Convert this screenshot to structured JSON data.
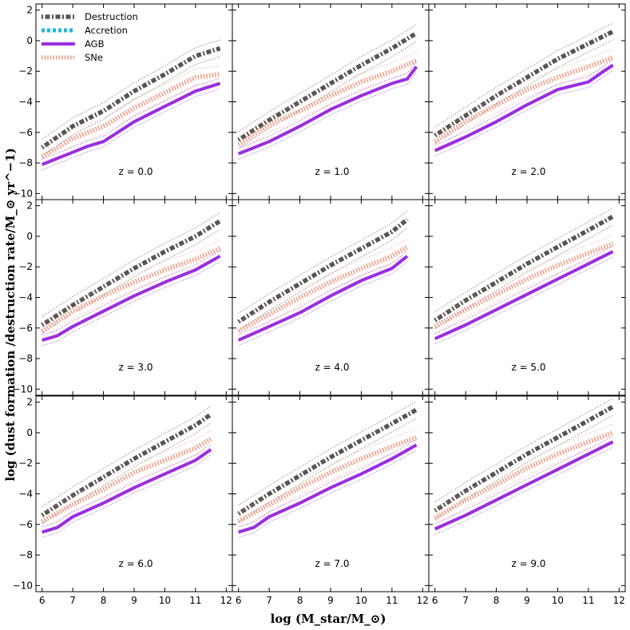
{
  "chart_data": {
    "type": "line",
    "xlabel": "log (M_star/M_⊙)",
    "ylabel": "log (dust formation /destruction rate/M_⊙ yr^−1)",
    "xlim": [
      5.8,
      12.2
    ],
    "ylim": [
      -10.4,
      2.4
    ],
    "xticks": [
      6,
      7,
      8,
      9,
      10,
      11,
      12
    ],
    "yticks": [
      2,
      0,
      -2,
      -4,
      -6,
      -8,
      -10
    ],
    "legend": {
      "placement": "top-left of first panel",
      "entries": [
        {
          "name": "Destruction",
          "color": "#555555",
          "style": "dash-dot"
        },
        {
          "name": "Accretion",
          "color": "#1fb4e6",
          "style": "dotted"
        },
        {
          "name": "AGB",
          "color": "#9a2ee0",
          "style": "solid"
        },
        {
          "name": "SNe",
          "color": "#f0a08a",
          "style": "dotted"
        }
      ]
    },
    "panels": [
      {
        "label": "z = 0.0",
        "destruction": {
          "x": [
            6.0,
            7.0,
            8.0,
            9.0,
            10.0,
            11.0,
            11.8
          ],
          "y": [
            -7.0,
            -5.6,
            -4.6,
            -3.3,
            -2.2,
            -1.0,
            -0.5
          ]
        },
        "sne": {
          "x": [
            6.0,
            7.0,
            8.0,
            9.0,
            10.0,
            11.0,
            11.8
          ],
          "y": [
            -7.6,
            -6.4,
            -5.6,
            -4.4,
            -3.4,
            -2.4,
            -2.2
          ]
        },
        "agb": {
          "x": [
            6.0,
            7.0,
            7.5,
            8.0,
            9.0,
            10.0,
            10.5,
            11.0,
            11.8
          ],
          "y": [
            -8.1,
            -7.3,
            -6.9,
            -6.6,
            -5.3,
            -4.3,
            -3.8,
            -3.3,
            -2.8
          ]
        }
      },
      {
        "label": "z = 1.0",
        "destruction": {
          "x": [
            6.0,
            7.0,
            8.0,
            9.0,
            10.0,
            11.0,
            11.8
          ],
          "y": [
            -6.5,
            -5.2,
            -4.0,
            -2.8,
            -1.6,
            -0.5,
            0.5
          ]
        },
        "sne": {
          "x": [
            6.0,
            7.0,
            8.0,
            9.0,
            10.0,
            11.0,
            11.8
          ],
          "y": [
            -6.8,
            -5.5,
            -4.6,
            -3.6,
            -2.7,
            -2.0,
            -1.3
          ]
        },
        "agb": {
          "x": [
            6.0,
            7.0,
            8.0,
            9.0,
            10.0,
            11.0,
            11.5,
            11.8
          ],
          "y": [
            -7.4,
            -6.6,
            -5.6,
            -4.5,
            -3.6,
            -2.8,
            -2.5,
            -1.7
          ]
        }
      },
      {
        "label": "z = 2.0",
        "destruction": {
          "x": [
            6.0,
            7.0,
            8.0,
            9.0,
            10.0,
            11.0,
            11.8
          ],
          "y": [
            -6.2,
            -4.9,
            -3.6,
            -2.4,
            -1.2,
            -0.2,
            0.6
          ]
        },
        "sne": {
          "x": [
            6.0,
            7.0,
            8.0,
            9.0,
            10.0,
            11.0,
            11.8
          ],
          "y": [
            -6.6,
            -5.3,
            -4.2,
            -3.2,
            -2.4,
            -1.7,
            -1.1
          ]
        },
        "agb": {
          "x": [
            6.0,
            7.0,
            8.0,
            9.0,
            10.0,
            11.0,
            11.5,
            11.8
          ],
          "y": [
            -7.2,
            -6.3,
            -5.3,
            -4.2,
            -3.2,
            -2.7,
            -2.0,
            -1.6
          ]
        }
      },
      {
        "label": "z = 3.0",
        "destruction": {
          "x": [
            6.0,
            7.0,
            8.0,
            9.0,
            10.0,
            11.0,
            11.8
          ],
          "y": [
            -5.8,
            -4.5,
            -3.3,
            -2.1,
            -1.0,
            0.0,
            1.0
          ]
        },
        "sne": {
          "x": [
            6.0,
            7.0,
            8.0,
            9.0,
            10.0,
            11.0,
            11.8
          ],
          "y": [
            -6.2,
            -4.9,
            -3.9,
            -3.0,
            -2.2,
            -1.5,
            -0.8
          ]
        },
        "agb": {
          "x": [
            6.0,
            6.5,
            7.0,
            8.0,
            9.0,
            10.0,
            11.0,
            11.8
          ],
          "y": [
            -6.8,
            -6.5,
            -5.9,
            -4.9,
            -3.9,
            -3.0,
            -2.2,
            -1.3
          ]
        }
      },
      {
        "label": "z = 4.0",
        "destruction": {
          "x": [
            6.0,
            7.0,
            8.0,
            9.0,
            10.0,
            11.0,
            11.5
          ],
          "y": [
            -5.6,
            -4.3,
            -3.1,
            -1.9,
            -0.8,
            0.3,
            1.1
          ]
        },
        "sne": {
          "x": [
            6.0,
            7.0,
            8.0,
            9.0,
            10.0,
            11.0,
            11.5
          ],
          "y": [
            -6.2,
            -5.1,
            -4.0,
            -3.0,
            -2.1,
            -1.3,
            -0.7
          ]
        },
        "agb": {
          "x": [
            6.0,
            7.0,
            8.0,
            9.0,
            10.0,
            11.0,
            11.5
          ],
          "y": [
            -6.8,
            -5.9,
            -5.0,
            -3.9,
            -2.9,
            -2.1,
            -1.3
          ]
        }
      },
      {
        "label": "z = 5.0",
        "destruction": {
          "x": [
            6.0,
            7.0,
            8.0,
            9.0,
            10.0,
            11.0,
            11.8
          ],
          "y": [
            -5.5,
            -4.2,
            -3.0,
            -1.8,
            -0.7,
            0.4,
            1.3
          ]
        },
        "sne": {
          "x": [
            6.0,
            7.0,
            8.0,
            9.0,
            10.0,
            11.0,
            11.8
          ],
          "y": [
            -5.9,
            -4.8,
            -3.8,
            -2.8,
            -1.9,
            -1.1,
            -0.5
          ]
        },
        "agb": {
          "x": [
            6.0,
            7.0,
            8.0,
            9.0,
            10.0,
            11.0,
            11.8
          ],
          "y": [
            -6.7,
            -5.8,
            -4.8,
            -3.8,
            -2.8,
            -1.8,
            -1.0
          ]
        }
      },
      {
        "label": "z = 6.0",
        "destruction": {
          "x": [
            6.0,
            7.0,
            8.0,
            9.0,
            10.0,
            11.0,
            11.5
          ],
          "y": [
            -5.4,
            -4.1,
            -2.9,
            -1.7,
            -0.6,
            0.5,
            1.2
          ]
        },
        "sne": {
          "x": [
            6.0,
            7.0,
            8.0,
            9.0,
            10.0,
            11.0,
            11.5
          ],
          "y": [
            -5.8,
            -4.7,
            -3.7,
            -2.6,
            -1.8,
            -1.0,
            -0.4
          ]
        },
        "agb": {
          "x": [
            6.0,
            6.5,
            7.0,
            8.0,
            9.0,
            10.0,
            11.0,
            11.5
          ],
          "y": [
            -6.5,
            -6.2,
            -5.5,
            -4.6,
            -3.6,
            -2.7,
            -1.8,
            -1.1
          ]
        }
      },
      {
        "label": "z = 7.0",
        "destruction": {
          "x": [
            6.0,
            7.0,
            8.0,
            9.0,
            10.0,
            11.0,
            11.8
          ],
          "y": [
            -5.3,
            -4.0,
            -2.8,
            -1.6,
            -0.5,
            0.6,
            1.5
          ]
        },
        "sne": {
          "x": [
            6.0,
            7.0,
            8.0,
            9.0,
            10.0,
            11.0,
            11.8
          ],
          "y": [
            -5.8,
            -4.7,
            -3.6,
            -2.6,
            -1.7,
            -0.9,
            -0.3
          ]
        },
        "agb": {
          "x": [
            6.0,
            6.5,
            7.0,
            8.0,
            9.0,
            10.0,
            11.0,
            11.8
          ],
          "y": [
            -6.5,
            -6.2,
            -5.5,
            -4.6,
            -3.6,
            -2.7,
            -1.7,
            -0.8
          ]
        }
      },
      {
        "label": "z = 9.0",
        "destruction": {
          "x": [
            6.0,
            7.0,
            8.0,
            9.0,
            10.0,
            11.0,
            11.8
          ],
          "y": [
            -5.1,
            -3.8,
            -2.6,
            -1.4,
            -0.3,
            0.8,
            1.7
          ]
        },
        "sne": {
          "x": [
            6.0,
            7.0,
            8.0,
            9.0,
            10.0,
            11.0,
            11.8
          ],
          "y": [
            -5.6,
            -4.4,
            -3.4,
            -2.3,
            -1.4,
            -0.6,
            0.0
          ]
        },
        "agb": {
          "x": [
            6.0,
            7.0,
            8.0,
            9.0,
            10.0,
            11.0,
            11.8
          ],
          "y": [
            -6.3,
            -5.4,
            -4.4,
            -3.4,
            -2.4,
            -1.4,
            -0.6
          ]
        }
      }
    ]
  }
}
